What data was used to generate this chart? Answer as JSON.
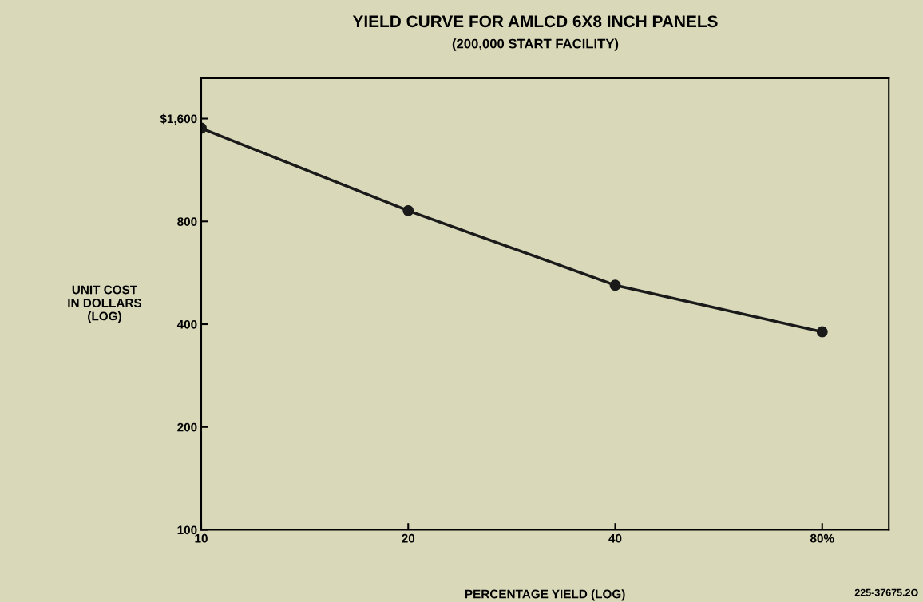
{
  "chart_data": {
    "type": "line",
    "title": "YIELD CURVE FOR AMLCD 6X8 INCH PANELS",
    "subtitle": "(200,000 START FACILITY)",
    "xlabel": "PERCENTAGE YIELD (LOG)",
    "ylabel": "UNIT COST\nIN DOLLARS\n(LOG)",
    "x": [
      10,
      20,
      40,
      80
    ],
    "series": [
      {
        "color": "#1a1a1a",
        "values": [
          1500,
          860,
          520,
          380
        ]
      }
    ],
    "log": "xy",
    "xlim": [
      10,
      100
    ],
    "ylim": [
      100,
      2100
    ],
    "xticks": [
      10,
      20,
      40,
      {
        "value": 80,
        "label": "80%"
      }
    ],
    "yticks": [
      100,
      200,
      400,
      800,
      {
        "value": 1600,
        "label": "$1,600"
      }
    ],
    "marker": "circle",
    "line_style": "solid",
    "grid": false,
    "legend": false,
    "annotations": [
      "225-37675.2O"
    ]
  }
}
